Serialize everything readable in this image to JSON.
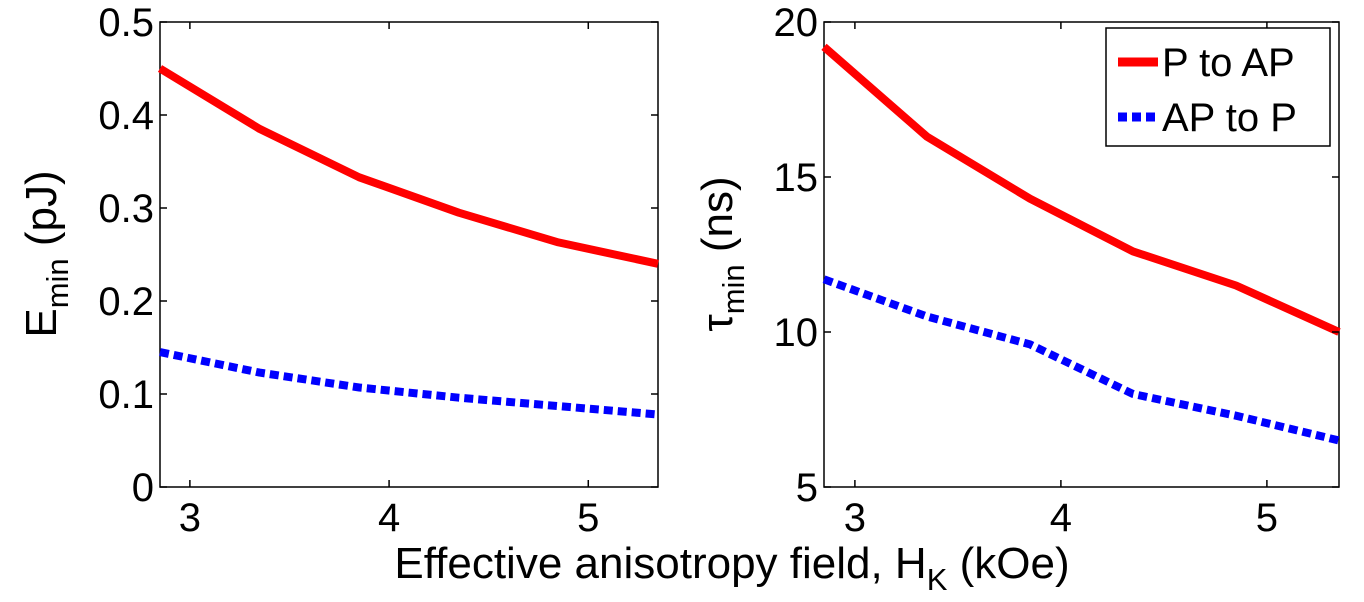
{
  "xlabel_main": "Effective anisotropy field, H",
  "xlabel_sub": "K",
  "xlabel_unit": " (kOe)",
  "chart_data": [
    {
      "type": "line",
      "panel": "left",
      "ylabel_main": "E",
      "ylabel_sub": "min",
      "ylabel_unit": " (pJ)",
      "xlim": [
        2.85,
        5.35
      ],
      "ylim": [
        0,
        0.5
      ],
      "xticks": [
        3,
        4,
        5
      ],
      "xtick_labels": [
        "3",
        "4",
        "5"
      ],
      "yticks": [
        0,
        0.1,
        0.2,
        0.3,
        0.4,
        0.5
      ],
      "ytick_labels": [
        "0",
        "0.1",
        "0.2",
        "0.3",
        "0.4",
        "0.5"
      ],
      "grid": false,
      "series": [
        {
          "name": "P to AP",
          "color": "#ff0000",
          "style": "solid",
          "x": [
            2.85,
            3.35,
            3.85,
            4.35,
            4.85,
            5.35
          ],
          "y": [
            0.45,
            0.385,
            0.333,
            0.295,
            0.263,
            0.24
          ]
        },
        {
          "name": "AP to P",
          "color": "#0000ff",
          "style": "dashed",
          "x": [
            2.85,
            3.35,
            3.85,
            4.35,
            4.85,
            5.35
          ],
          "y": [
            0.145,
            0.123,
            0.107,
            0.096,
            0.087,
            0.078
          ]
        }
      ]
    },
    {
      "type": "line",
      "panel": "right",
      "ylabel_main": "τ",
      "ylabel_sub": "min",
      "ylabel_unit": " (ns)",
      "xlim": [
        2.85,
        5.35
      ],
      "ylim": [
        5,
        20
      ],
      "xticks": [
        3,
        4,
        5
      ],
      "xtick_labels": [
        "3",
        "4",
        "5"
      ],
      "yticks": [
        5,
        10,
        15,
        20
      ],
      "ytick_labels": [
        "5",
        "10",
        "15",
        "20"
      ],
      "grid": false,
      "legend": {
        "position": "top-right",
        "entries": [
          "P to AP",
          "AP to P"
        ]
      },
      "series": [
        {
          "name": "P to AP",
          "color": "#ff0000",
          "style": "solid",
          "x": [
            2.85,
            3.35,
            3.85,
            4.35,
            4.85,
            5.35
          ],
          "y": [
            19.2,
            16.3,
            14.3,
            12.6,
            11.5,
            10.0
          ]
        },
        {
          "name": "AP to P",
          "color": "#0000ff",
          "style": "dashed",
          "x": [
            2.85,
            3.35,
            3.85,
            4.35,
            4.85,
            5.35
          ],
          "y": [
            11.7,
            10.5,
            9.6,
            8.0,
            7.3,
            6.5
          ]
        }
      ]
    }
  ]
}
